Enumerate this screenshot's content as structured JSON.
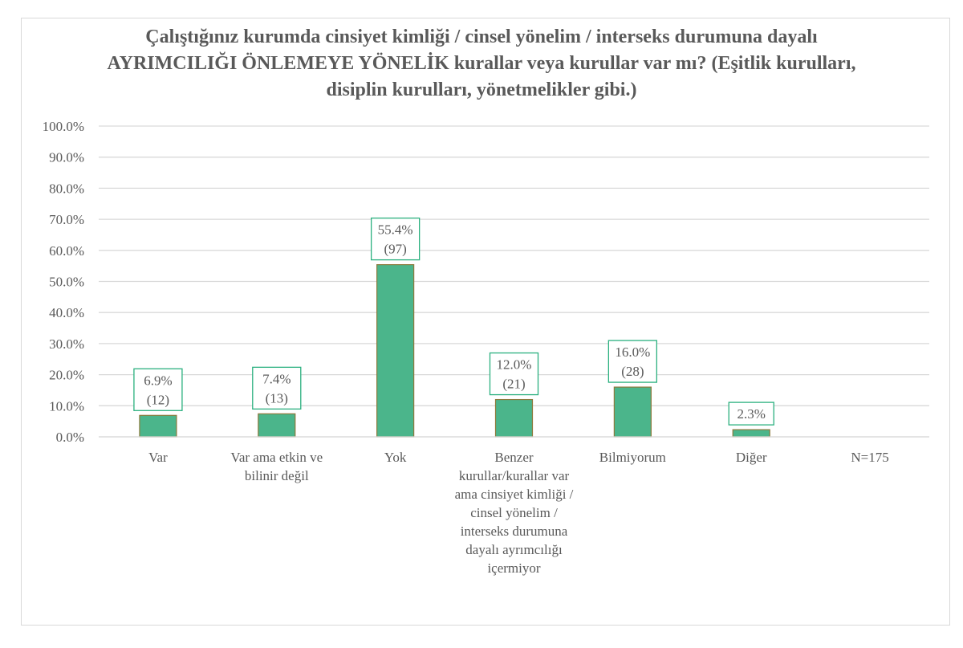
{
  "chart_data": {
    "type": "bar",
    "title": "Çalıştığınız kurumda cinsiyet kimliği / cinsel yönelim / interseks durumuna dayalı AYRIMCILIĞI ÖNLEMEYE YÖNELİK kurallar veya kurullar var mı? (Eşitlik kurulları, disiplin kurulları, yönetmelikler gibi.)",
    "categories": [
      "Var",
      "Var ama etkin ve bilinir değil",
      "Yok",
      "Benzer kurullar/kurallar var ama cinsiyet kimliği / cinsel yönelim / interseks durumuna dayalı ayrımcılığı içermiyor",
      "Bilmiyorum",
      "Diğer",
      "N=175"
    ],
    "values": [
      6.9,
      7.4,
      55.4,
      12.0,
      16.0,
      2.3,
      null
    ],
    "data_labels": [
      {
        "pct": "6.9%",
        "count": "(12)"
      },
      {
        "pct": "7.4%",
        "count": "(13)"
      },
      {
        "pct": "55.4%",
        "count": "(97)"
      },
      {
        "pct": "12.0%",
        "count": "(21)"
      },
      {
        "pct": "16.0%",
        "count": "(28)"
      },
      {
        "pct": "2.3%",
        "count": ""
      },
      null
    ],
    "yticks": [
      "0.0%",
      "10.0%",
      "20.0%",
      "30.0%",
      "40.0%",
      "50.0%",
      "60.0%",
      "70.0%",
      "80.0%",
      "90.0%",
      "100.0%"
    ],
    "ylim": [
      0,
      100
    ],
    "xlabel": "",
    "ylabel": "",
    "grid": true,
    "legend": "none",
    "colors": {
      "bar": "#4bb58b",
      "bar_border": "#8c7a3c",
      "label_border": "#2bb07f",
      "grid": "#d9d9d9"
    }
  }
}
